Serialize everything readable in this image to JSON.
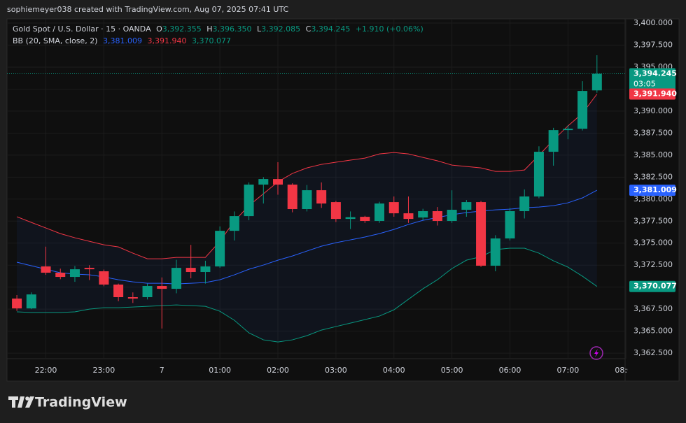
{
  "attribution": "sophiemeyer038 created with TradingView.com, Aug 07, 2025 07:41 UTC",
  "brand": "TradingView",
  "chart_data": {
    "type": "candlestick",
    "title": "Gold Spot / U.S. Dollar · 15 · OANDA",
    "legend": {
      "o": "O",
      "open": "3,392.355",
      "h": "H",
      "high": "3,396.350",
      "l": "L",
      "low": "3,392.085",
      "c": "C",
      "close": "3,394.245",
      "change": "+1.910 (+0.06%)"
    },
    "indicator": "BB (20, SMA, close, 2)",
    "up_color": "#089981",
    "down_color": "#f23645",
    "price_label": "3,394.245",
    "countdown": "03:05",
    "xlim": [
      -0.68,
      41.94
    ],
    "xticks": [
      {
        "value": 2,
        "label": "22:00"
      },
      {
        "value": 6,
        "label": "23:00"
      },
      {
        "value": 10,
        "label": "7"
      },
      {
        "value": 14,
        "label": "01:00"
      },
      {
        "value": 18,
        "label": "02:00"
      },
      {
        "value": 22,
        "label": "03:00"
      },
      {
        "value": 26,
        "label": "04:00"
      },
      {
        "value": 30,
        "label": "05:00"
      },
      {
        "value": 34,
        "label": "06:00"
      },
      {
        "value": 38,
        "label": "07:00"
      },
      {
        "value": 42,
        "label": "08:00"
      }
    ],
    "ylim": [
      3361.87,
      3400.48
    ],
    "yticks": [
      {
        "value": 3362.5,
        "label": "3,362.500"
      },
      {
        "value": 3365,
        "label": "3,365.000"
      },
      {
        "value": 3367.5,
        "label": "3,367.500"
      },
      {
        "value": 3370,
        "label": "3,370.000"
      },
      {
        "value": 3372.5,
        "label": "3,372.500"
      },
      {
        "value": 3375,
        "label": "3,375.000"
      },
      {
        "value": 3377.5,
        "label": "3,377.500"
      },
      {
        "value": 3380,
        "label": "3,380.000"
      },
      {
        "value": 3382.5,
        "label": "3,382.500"
      },
      {
        "value": 3385,
        "label": "3,385.000"
      },
      {
        "value": 3387.5,
        "label": "3,387.500"
      },
      {
        "value": 3390,
        "label": "3,390.000"
      },
      {
        "value": 3392.5,
        "label": "3,392.500"
      },
      {
        "value": 3395,
        "label": "3,395.000"
      },
      {
        "value": 3397.5,
        "label": "3,397.500"
      },
      {
        "value": 3400,
        "label": "3,400.000"
      }
    ],
    "open": [
      3368.7,
      3367.58,
      3372.35,
      3371.64,
      3371.16,
      3372.19,
      3371.8,
      3370.29,
      3368.86,
      3368.86,
      3370.13,
      3369.81,
      3372.19,
      3371.72,
      3372.35,
      3376.4,
      3378.07,
      3381.65,
      3382.28,
      3381.65,
      3378.87,
      3381.01,
      3379.66,
      3377.75,
      3377.99,
      3377.52,
      3379.66,
      3378.39,
      3377.91,
      3378.63,
      3377.52,
      3378.79,
      3379.66,
      3372.43,
      3375.53,
      3378.63,
      3380.3,
      3385.38,
      3387.84,
      3388.0,
      3392.355
    ],
    "high": [
      3369.1,
      3369.4,
      3374.6,
      3372.1,
      3372.4,
      3372.5,
      3372.0,
      3370.4,
      3369.4,
      3370.4,
      3371.1,
      3373.1,
      3374.8,
      3373.0,
      3376.9,
      3378.6,
      3381.9,
      3382.5,
      3384.2,
      3381.8,
      3381.6,
      3381.9,
      3379.8,
      3378.6,
      3378.1,
      3379.7,
      3380.3,
      3380.3,
      3378.9,
      3379.1,
      3381.0,
      3379.9,
      3379.8,
      3375.9,
      3379.0,
      3381.1,
      3386.0,
      3388.1,
      3388.4,
      3393.4,
      3396.35
    ],
    "low": [
      3367.3,
      3367.5,
      3371.4,
      3370.9,
      3370.6,
      3370.8,
      3370.1,
      3368.4,
      3368.2,
      3368.6,
      3365.3,
      3369.3,
      3371.0,
      3370.4,
      3372.2,
      3375.3,
      3377.6,
      3379.5,
      3380.5,
      3378.5,
      3378.6,
      3379.0,
      3377.4,
      3376.6,
      3377.3,
      3377.3,
      3378.0,
      3377.3,
      3377.6,
      3377.0,
      3377.3,
      3378.0,
      3372.3,
      3371.8,
      3375.3,
      3377.8,
      3380.1,
      3383.8,
      3386.8,
      3387.8,
      3392.085
    ],
    "close": [
      3367.58,
      3369.17,
      3371.64,
      3371.16,
      3372.03,
      3372.03,
      3370.29,
      3368.86,
      3368.7,
      3370.13,
      3369.81,
      3372.19,
      3371.72,
      3372.35,
      3376.4,
      3378.07,
      3381.65,
      3382.28,
      3381.65,
      3378.87,
      3381.01,
      3379.5,
      3377.75,
      3377.95,
      3377.52,
      3379.5,
      3378.39,
      3377.75,
      3378.63,
      3377.52,
      3378.79,
      3379.66,
      3372.43,
      3375.53,
      3378.63,
      3380.3,
      3385.38,
      3387.84,
      3388.0,
      3392.29,
      3394.245
    ],
    "series": [
      {
        "color": "#2962ff",
        "label": "3,381.009",
        "values": [
          3372.83,
          3372.43,
          3372.03,
          3371.63,
          3371.48,
          3371.4,
          3371.16,
          3370.84,
          3370.6,
          3370.44,
          3370.44,
          3370.36,
          3370.44,
          3370.52,
          3370.84,
          3371.4,
          3372.03,
          3372.51,
          3373.06,
          3373.54,
          3374.1,
          3374.65,
          3375.05,
          3375.37,
          3375.69,
          3376.08,
          3376.56,
          3377.12,
          3377.59,
          3377.91,
          3378.23,
          3378.47,
          3378.63,
          3378.78,
          3378.86,
          3379.02,
          3379.1,
          3379.26,
          3379.58,
          3380.14,
          3381.009
        ]
      },
      {
        "color": "#f23645",
        "label": "3,391.940",
        "values": [
          3378.0,
          3377.35,
          3376.72,
          3376.08,
          3375.61,
          3375.21,
          3374.81,
          3374.57,
          3373.86,
          3373.22,
          3373.22,
          3373.38,
          3373.38,
          3373.38,
          3375.21,
          3377.51,
          3379.26,
          3380.61,
          3381.96,
          3382.92,
          3383.55,
          3383.95,
          3384.19,
          3384.43,
          3384.66,
          3385.14,
          3385.3,
          3385.14,
          3384.74,
          3384.35,
          3383.87,
          3383.71,
          3383.55,
          3383.15,
          3383.15,
          3383.31,
          3384.98,
          3386.73,
          3388.32,
          3389.75,
          3391.94
        ]
      },
      {
        "color": "#089981",
        "label": "3,370.077",
        "values": [
          3367.19,
          3367.11,
          3367.11,
          3367.11,
          3367.19,
          3367.5,
          3367.66,
          3367.66,
          3367.74,
          3367.82,
          3367.9,
          3367.98,
          3367.9,
          3367.82,
          3367.26,
          3366.23,
          3364.8,
          3364.01,
          3363.77,
          3364.01,
          3364.48,
          3365.12,
          3365.52,
          3365.91,
          3366.31,
          3366.71,
          3367.42,
          3368.62,
          3369.81,
          3370.84,
          3372.11,
          3373.06,
          3373.46,
          3374.26,
          3374.42,
          3374.42,
          3373.86,
          3372.99,
          3372.27,
          3371.24,
          3370.077
        ]
      }
    ]
  }
}
